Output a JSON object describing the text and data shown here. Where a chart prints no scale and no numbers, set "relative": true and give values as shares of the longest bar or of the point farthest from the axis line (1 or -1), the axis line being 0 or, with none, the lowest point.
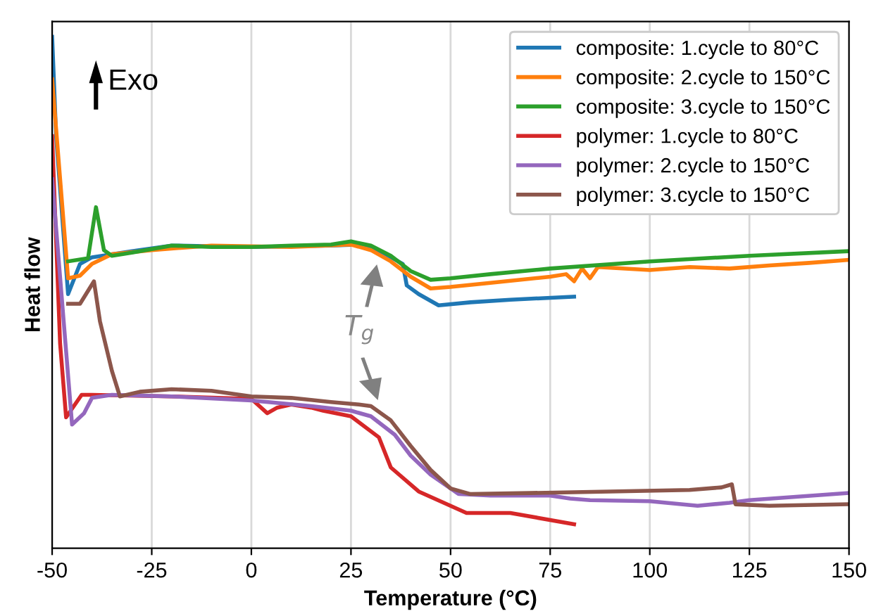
{
  "chart_data": {
    "type": "line",
    "xlabel": "Temperature (°C)",
    "ylabel": "Heat flow",
    "relative": true,
    "xlim": [
      -50,
      150
    ],
    "xticks": [
      -50,
      -25,
      0,
      25,
      50,
      75,
      100,
      125,
      150
    ],
    "grid": "x",
    "legend": "top right",
    "tick_labels": "x",
    "line_style": "solid",
    "marker": "none",
    "annotations": [
      "Exo",
      "T$_{g}$"
    ],
    "series": [
      {
        "name": "composite: 1.cycle to 80°C",
        "color": "#1f77b4",
        "x": [
          -50,
          -49,
          -46,
          -43,
          -40,
          -30,
          -20,
          0,
          20,
          27,
          33,
          38,
          39,
          42,
          47,
          55,
          65,
          81
        ],
        "values": [
          1.0,
          0.806,
          0.497,
          0.556,
          0.569,
          0.581,
          0.592,
          0.589,
          0.592,
          0.594,
          0.578,
          0.556,
          0.514,
          0.497,
          0.475,
          0.481,
          0.486,
          0.492
        ]
      },
      {
        "name": "composite: 2.cycle to 150°C",
        "color": "#ff7f0e",
        "x": [
          -50,
          -46,
          -43,
          -40,
          -35,
          -25,
          -10,
          10,
          25,
          30,
          35,
          40,
          45,
          50,
          60,
          75,
          79,
          81,
          83,
          85,
          87,
          100,
          110,
          120,
          130,
          140,
          150
        ],
        "values": [
          0.917,
          0.528,
          0.533,
          0.556,
          0.575,
          0.583,
          0.592,
          0.589,
          0.594,
          0.583,
          0.561,
          0.531,
          0.508,
          0.511,
          0.519,
          0.531,
          0.536,
          0.522,
          0.547,
          0.528,
          0.55,
          0.544,
          0.55,
          0.547,
          0.553,
          0.558,
          0.564
        ]
      },
      {
        "name": "composite: 3.cycle to 150°C",
        "color": "#2ca02c",
        "x": [
          -46,
          -41,
          -39,
          -37,
          -35,
          -30,
          -20,
          -10,
          0,
          10,
          20,
          25,
          30,
          35,
          40,
          45,
          50,
          60,
          75,
          100,
          125,
          150
        ],
        "values": [
          0.561,
          0.567,
          0.667,
          0.583,
          0.572,
          0.578,
          0.592,
          0.589,
          0.589,
          0.592,
          0.594,
          0.6,
          0.592,
          0.572,
          0.542,
          0.525,
          0.528,
          0.536,
          0.547,
          0.561,
          0.572,
          0.581
        ]
      },
      {
        "name": "polymer: 1.cycle to 80°C",
        "color": "#d62728",
        "x": [
          -50,
          -48,
          -46.5,
          -42.6,
          -40,
          -20,
          0,
          4,
          6.5,
          10,
          15,
          18,
          25,
          32,
          35,
          42,
          54,
          65,
          81
        ],
        "values": [
          0.806,
          0.4,
          0.256,
          0.3,
          0.3,
          0.297,
          0.292,
          0.264,
          0.275,
          0.281,
          0.275,
          0.269,
          0.258,
          0.217,
          0.158,
          0.111,
          0.069,
          0.069,
          0.047
        ]
      },
      {
        "name": "polymer: 2.cycle to 150°C",
        "color": "#9467bd",
        "x": [
          -50,
          -45,
          -42,
          -40,
          -35,
          -20,
          0,
          15,
          25,
          30,
          36,
          40,
          45,
          52,
          60,
          75,
          80,
          85,
          100,
          112,
          120,
          125,
          150
        ],
        "values": [
          0.722,
          0.242,
          0.264,
          0.294,
          0.3,
          0.297,
          0.289,
          0.278,
          0.269,
          0.258,
          0.222,
          0.181,
          0.144,
          0.106,
          0.103,
          0.103,
          0.097,
          0.094,
          0.092,
          0.083,
          0.089,
          0.094,
          0.108
        ]
      },
      {
        "name": "polymer: 3.cycle to 150°C",
        "color": "#8c564b",
        "x": [
          -46,
          -43,
          -39.5,
          -38,
          -35,
          -33,
          -28,
          -20,
          -10,
          0,
          10,
          20,
          27,
          30,
          35,
          40,
          45,
          50,
          55,
          70,
          90,
          110,
          118,
          120.6,
          121.5,
          130,
          150
        ],
        "values": [
          0.478,
          0.478,
          0.522,
          0.444,
          0.347,
          0.297,
          0.306,
          0.311,
          0.308,
          0.297,
          0.294,
          0.286,
          0.281,
          0.278,
          0.25,
          0.2,
          0.153,
          0.117,
          0.106,
          0.108,
          0.111,
          0.114,
          0.119,
          0.125,
          0.086,
          0.083,
          0.086
        ]
      }
    ]
  }
}
